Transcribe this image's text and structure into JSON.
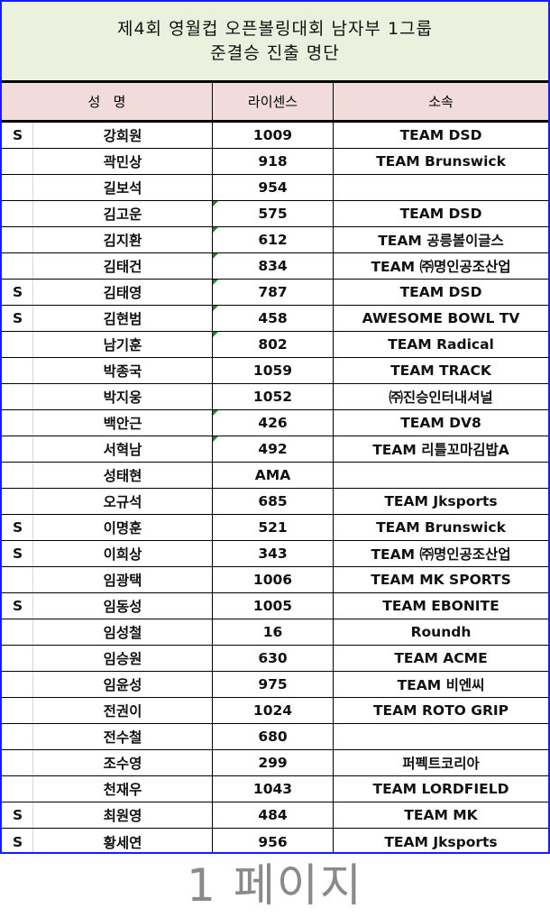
{
  "title": {
    "line1": "제4회 영월컵 오픈볼링대회 남자부 1그룹",
    "line2": "준결승 진출 명단"
  },
  "columns": {
    "name": "성   명",
    "license": "라이센스",
    "affiliation": "소속"
  },
  "watermark": "1 페이지",
  "comment_indicator_color": "#1a8a1a",
  "rows": [
    {
      "mark": "S",
      "name": "강희원",
      "license": "1009",
      "team": "TEAM DSD",
      "comment": false
    },
    {
      "mark": "",
      "name": "곽민상",
      "license": "918",
      "team": "TEAM Brunswick",
      "comment": false
    },
    {
      "mark": "",
      "name": "길보석",
      "license": "954",
      "team": "",
      "comment": false
    },
    {
      "mark": "",
      "name": "김고운",
      "license": "575",
      "team": "TEAM DSD",
      "comment": true
    },
    {
      "mark": "",
      "name": "김지환",
      "license": "612",
      "team": "TEAM 공릉볼이글스",
      "comment": true
    },
    {
      "mark": "",
      "name": "김태건",
      "license": "834",
      "team": "TEAM ㈜명인공조산업",
      "comment": true
    },
    {
      "mark": "S",
      "name": "김태영",
      "license": "787",
      "team": "TEAM DSD",
      "comment": true
    },
    {
      "mark": "S",
      "name": "김현범",
      "license": "458",
      "team": "AWESOME BOWL TV",
      "comment": true
    },
    {
      "mark": "",
      "name": "남기훈",
      "license": "802",
      "team": "TEAM Radical",
      "comment": true
    },
    {
      "mark": "",
      "name": "박종국",
      "license": "1059",
      "team": "TEAM TRACK",
      "comment": false
    },
    {
      "mark": "",
      "name": "박지웅",
      "license": "1052",
      "team": "㈜진승인터내셔널",
      "comment": false
    },
    {
      "mark": "",
      "name": "백안근",
      "license": "426",
      "team": "TEAM DV8",
      "comment": true
    },
    {
      "mark": "",
      "name": "서혁남",
      "license": "492",
      "team": "TEAM 리틀꼬마김밥A",
      "comment": true
    },
    {
      "mark": "",
      "name": "성태현",
      "license": "AMA",
      "team": "",
      "comment": false
    },
    {
      "mark": "",
      "name": "오규석",
      "license": "685",
      "team": "TEAM Jksports",
      "comment": false
    },
    {
      "mark": "S",
      "name": "이명훈",
      "license": "521",
      "team": "TEAM Brunswick",
      "comment": false
    },
    {
      "mark": "S",
      "name": "이희상",
      "license": "343",
      "team": "TEAM ㈜명인공조산업",
      "comment": false
    },
    {
      "mark": "",
      "name": "임광택",
      "license": "1006",
      "team": "TEAM MK SPORTS",
      "comment": false
    },
    {
      "mark": "S",
      "name": "임동성",
      "license": "1005",
      "team": "TEAM EBONITE",
      "comment": false
    },
    {
      "mark": "",
      "name": "임성철",
      "license": "16",
      "team": "Roundh",
      "comment": false
    },
    {
      "mark": "",
      "name": "임승원",
      "license": "630",
      "team": "TEAM ACME",
      "comment": false
    },
    {
      "mark": "",
      "name": "임윤성",
      "license": "975",
      "team": "TEAM 비엔씨",
      "comment": false
    },
    {
      "mark": "",
      "name": "전권이",
      "license": "1024",
      "team": "TEAM ROTO GRIP",
      "comment": false
    },
    {
      "mark": "",
      "name": "전수철",
      "license": "680",
      "team": "",
      "comment": false
    },
    {
      "mark": "",
      "name": "조수영",
      "license": "299",
      "team": "퍼펙트코리아",
      "comment": false
    },
    {
      "mark": "",
      "name": "천재우",
      "license": "1043",
      "team": "TEAM LORDFIELD",
      "comment": false
    },
    {
      "mark": "S",
      "name": "최원영",
      "license": "484",
      "team": "TEAM MK",
      "comment": false
    },
    {
      "mark": "S",
      "name": "황세연",
      "license": "956",
      "team": "TEAM Jksports",
      "comment": false
    }
  ]
}
